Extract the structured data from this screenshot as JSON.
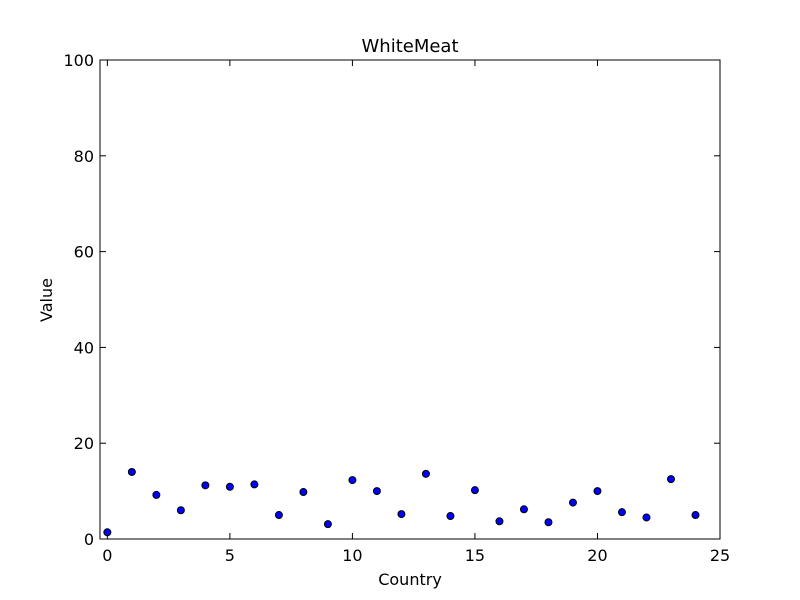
{
  "chart_data": {
    "type": "scatter",
    "title": "WhiteMeat",
    "xlabel": "Country",
    "ylabel": "Value",
    "xlim": [
      -0.3,
      25
    ],
    "ylim": [
      0,
      100
    ],
    "xticks": [
      0,
      5,
      10,
      15,
      20,
      25
    ],
    "yticks": [
      0,
      20,
      40,
      60,
      80,
      100
    ],
    "grid": false,
    "marker_color": "#0000ff",
    "marker_edge_color": "#000000",
    "series": [
      {
        "x": [
          0,
          1,
          2,
          3,
          4,
          5,
          6,
          7,
          8,
          9,
          10,
          11,
          12,
          13,
          14,
          15,
          16,
          17,
          18,
          19,
          20,
          21,
          22,
          23,
          24
        ],
        "values": [
          1.4,
          14.0,
          9.2,
          6.0,
          11.2,
          10.9,
          11.4,
          5.0,
          9.8,
          3.1,
          12.3,
          10.0,
          5.2,
          13.6,
          4.8,
          10.2,
          3.7,
          6.2,
          3.5,
          7.6,
          10.0,
          5.6,
          4.5,
          12.5,
          5.0
        ]
      }
    ]
  }
}
